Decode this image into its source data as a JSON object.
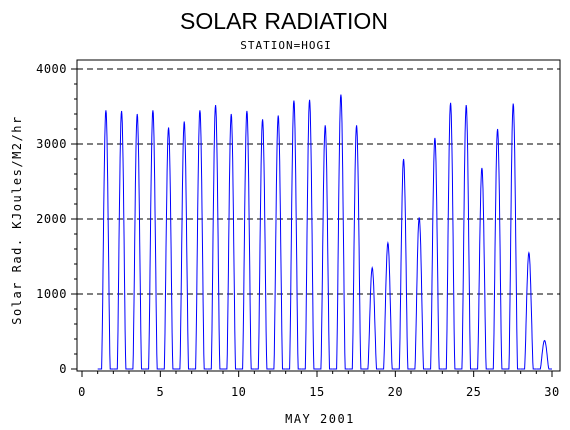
{
  "chart_data": {
    "type": "line",
    "title": "SOLAR RADIATION",
    "subtitle": "STATION=HOGI",
    "xlabel": "MAY 2001",
    "ylabel": "Solar Rad. KJoules/M2/hr",
    "xlim": [
      0,
      30
    ],
    "ylim": [
      0,
      4000
    ],
    "x_ticks": [
      "0",
      "5",
      "10",
      "15",
      "20",
      "25",
      "30"
    ],
    "y_ticks": [
      "0",
      "1000",
      "2000",
      "3000",
      "4000"
    ],
    "grid": "horizontal dashed",
    "series_color": "#0000ff",
    "daily_peaks": [
      {
        "day": 1,
        "peak": 3450
      },
      {
        "day": 2,
        "peak": 3440
      },
      {
        "day": 3,
        "peak": 3400
      },
      {
        "day": 4,
        "peak": 3450
      },
      {
        "day": 5,
        "peak": 3220
      },
      {
        "day": 6,
        "peak": 3300
      },
      {
        "day": 7,
        "peak": 3450
      },
      {
        "day": 8,
        "peak": 3520
      },
      {
        "day": 9,
        "peak": 3400
      },
      {
        "day": 10,
        "peak": 3440
      },
      {
        "day": 11,
        "peak": 3330
      },
      {
        "day": 12,
        "peak": 3380
      },
      {
        "day": 13,
        "peak": 3580
      },
      {
        "day": 14,
        "peak": 3590
      },
      {
        "day": 15,
        "peak": 3250
      },
      {
        "day": 16,
        "peak": 3660
      },
      {
        "day": 17,
        "peak": 3250
      },
      {
        "day": 18,
        "peak": 1350
      },
      {
        "day": 19,
        "peak": 1680
      },
      {
        "day": 20,
        "peak": 2800
      },
      {
        "day": 21,
        "peak": 2020
      },
      {
        "day": 22,
        "peak": 3080
      },
      {
        "day": 23,
        "peak": 3550
      },
      {
        "day": 24,
        "peak": 3520
      },
      {
        "day": 25,
        "peak": 2680
      },
      {
        "day": 26,
        "peak": 3200
      },
      {
        "day": 27,
        "peak": 3540
      },
      {
        "day": 28,
        "peak": 1550
      },
      {
        "day": 29,
        "peak": 380
      }
    ]
  }
}
